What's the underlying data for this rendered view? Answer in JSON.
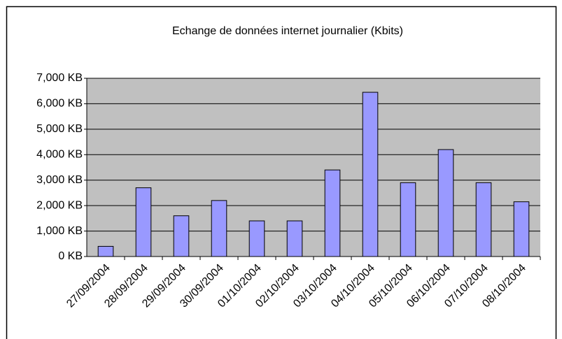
{
  "chart_data": {
    "type": "bar",
    "title": "Echange de données internet journalier (Kbits)",
    "categories": [
      "27/09/2004",
      "28/09/2004",
      "29/09/2004",
      "30/09/2004",
      "01/10/2004",
      "02/10/2004",
      "03/10/2004",
      "04/10/2004",
      "05/10/2004",
      "06/10/2004",
      "07/10/2004",
      "08/10/2004"
    ],
    "values": [
      400,
      2700,
      1600,
      2200,
      1400,
      1400,
      3400,
      6450,
      2900,
      4200,
      2900,
      2150
    ],
    "color": "#9999ff",
    "ylim": [
      0,
      7000
    ],
    "yticks": [
      {
        "value": 0,
        "label": "0 KB"
      },
      {
        "value": 1000,
        "label": "1,000 KB"
      },
      {
        "value": 2000,
        "label": "2,000 KB"
      },
      {
        "value": 3000,
        "label": "3,000 KB"
      },
      {
        "value": 4000,
        "label": "4,000 KB"
      },
      {
        "value": 5000,
        "label": "5,000 KB"
      },
      {
        "value": 6000,
        "label": "6,000 KB"
      },
      {
        "value": 7000,
        "label": "7,000 KB"
      }
    ],
    "grid": true
  }
}
